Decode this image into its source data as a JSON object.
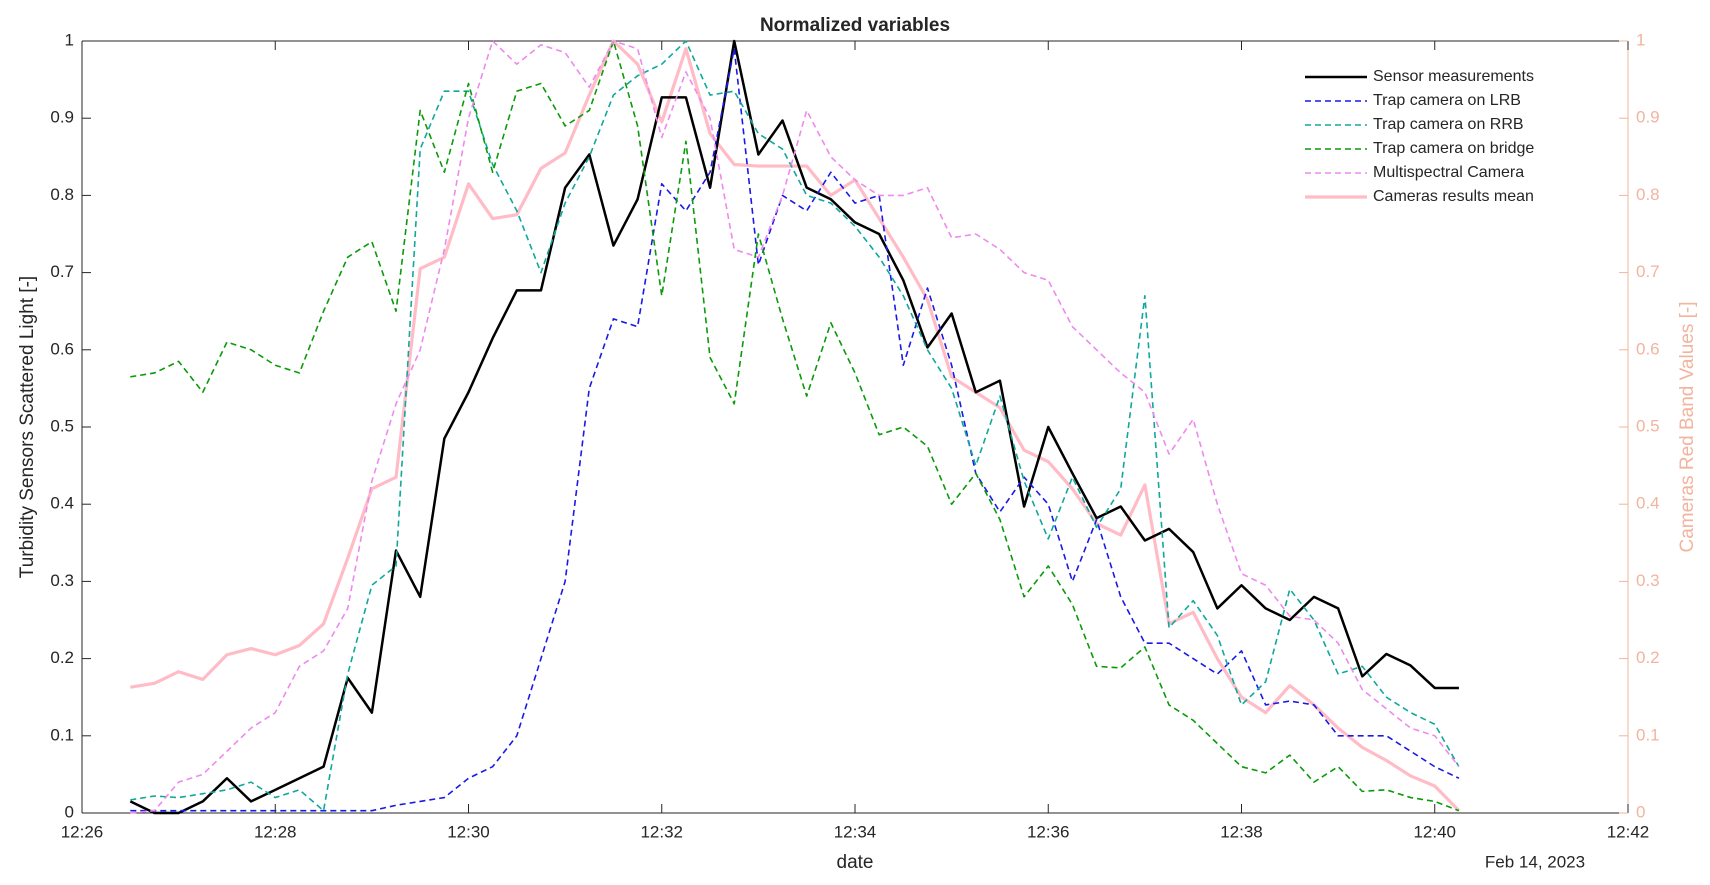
{
  "chart_data": {
    "type": "line",
    "title": "Normalized variables",
    "xlabel": "date",
    "ylabel": "Turbidity Sensors Scattered Light [-]",
    "y2label": "Cameras Red Band Values [-]",
    "date_label": "Feb 14, 2023",
    "axis_color": "#262626",
    "y2_color": "#f2b49e",
    "legend": "upper right",
    "grid": false,
    "xlim": [
      746,
      762
    ],
    "xticks": [
      {
        "value": 746,
        "label": "12:26"
      },
      {
        "value": 748,
        "label": "12:28"
      },
      {
        "value": 750,
        "label": "12:30"
      },
      {
        "value": 752,
        "label": "12:32"
      },
      {
        "value": 754,
        "label": "12:34"
      },
      {
        "value": 756,
        "label": "12:36"
      },
      {
        "value": 758,
        "label": "12:38"
      },
      {
        "value": 760,
        "label": "12:40"
      },
      {
        "value": 762,
        "label": "12:42"
      }
    ],
    "ylim": [
      0,
      1
    ],
    "yticks": [
      0,
      0.1,
      0.2,
      0.3,
      0.4,
      0.5,
      0.6,
      0.7,
      0.8,
      0.9,
      1
    ],
    "y2lim": [
      0,
      1
    ],
    "y2ticks": [
      0,
      0.1,
      0.2,
      0.3,
      0.4,
      0.5,
      0.6,
      0.7,
      0.8,
      0.9,
      1
    ],
    "x": [
      746.5,
      746.75,
      747,
      747.25,
      747.5,
      747.75,
      748,
      748.25,
      748.5,
      748.75,
      749,
      749.25,
      749.5,
      749.75,
      750,
      750.25,
      750.5,
      750.75,
      751,
      751.25,
      751.5,
      751.75,
      752,
      752.25,
      752.5,
      752.75,
      753,
      753.25,
      753.5,
      753.75,
      754,
      754.25,
      754.5,
      754.75,
      755,
      755.25,
      755.5,
      755.75,
      756,
      756.25,
      756.5,
      756.75,
      757,
      757.25,
      757.5,
      757.75,
      758,
      758.25,
      758.5,
      758.75,
      759,
      759.25,
      759.5,
      759.75,
      760,
      760.25
    ],
    "series": [
      {
        "name": "Sensor measurements",
        "color": "#000000",
        "line_style": "solid",
        "line_width": 2.5,
        "values": [
          0.015,
          0,
          0,
          0.015,
          0.045,
          0.015,
          0.03,
          0.045,
          0.06,
          0.175,
          0.13,
          0.34,
          0.28,
          0.485,
          0.545,
          0.615,
          0.677,
          0.677,
          0.81,
          0.853,
          0.735,
          0.795,
          0.927,
          0.927,
          0.81,
          1.0,
          0.853,
          0.897,
          0.81,
          0.795,
          0.765,
          0.75,
          0.69,
          0.603,
          0.647,
          0.545,
          0.56,
          0.397,
          0.5,
          0.44,
          0.382,
          0.397,
          0.353,
          0.368,
          0.338,
          0.265,
          0.295,
          0.265,
          0.25,
          0.28,
          0.265,
          0.177,
          0.206,
          0.191,
          0.162,
          0.162
        ]
      },
      {
        "name": "Trap camera on LRB",
        "color": "#1a1ae6",
        "line_style": "dashed",
        "line_width": 1.6,
        "values": [
          0.003,
          0.003,
          0.003,
          0.003,
          0.003,
          0.003,
          0.003,
          0.003,
          0.003,
          0.003,
          0.003,
          0.01,
          0.015,
          0.02,
          0.045,
          0.06,
          0.1,
          0.2,
          0.3,
          0.55,
          0.64,
          0.63,
          0.815,
          0.78,
          0.83,
          0.99,
          0.71,
          0.8,
          0.78,
          0.83,
          0.79,
          0.8,
          0.58,
          0.68,
          0.58,
          0.44,
          0.39,
          0.435,
          0.4,
          0.3,
          0.38,
          0.28,
          0.22,
          0.22,
          0.2,
          0.18,
          0.21,
          0.14,
          0.145,
          0.14,
          0.1,
          0.1,
          0.1,
          0.08,
          0.06,
          0.045
        ]
      },
      {
        "name": "Trap camera on RRB",
        "color": "#10a89c",
        "line_style": "dashed",
        "line_width": 1.6,
        "values": [
          0.017,
          0.022,
          0.02,
          0.025,
          0.03,
          0.04,
          0.02,
          0.03,
          0.003,
          0.18,
          0.295,
          0.32,
          0.86,
          0.935,
          0.935,
          0.84,
          0.78,
          0.7,
          0.79,
          0.85,
          0.93,
          0.955,
          0.97,
          1.0,
          0.93,
          0.935,
          0.88,
          0.86,
          0.8,
          0.79,
          0.76,
          0.72,
          0.67,
          0.6,
          0.55,
          0.45,
          0.54,
          0.43,
          0.355,
          0.435,
          0.37,
          0.42,
          0.67,
          0.24,
          0.275,
          0.23,
          0.14,
          0.17,
          0.29,
          0.25,
          0.18,
          0.19,
          0.15,
          0.13,
          0.115,
          0.06
        ]
      },
      {
        "name": "Trap camera on bridge",
        "color": "#0a9a0a",
        "line_style": "dashed",
        "line_width": 1.6,
        "values": [
          0.565,
          0.57,
          0.585,
          0.545,
          0.61,
          0.6,
          0.58,
          0.57,
          0.65,
          0.72,
          0.74,
          0.65,
          0.91,
          0.83,
          0.945,
          0.83,
          0.935,
          0.945,
          0.89,
          0.91,
          1.0,
          0.89,
          0.67,
          0.87,
          0.59,
          0.53,
          0.75,
          0.64,
          0.54,
          0.635,
          0.57,
          0.49,
          0.5,
          0.475,
          0.4,
          0.44,
          0.38,
          0.28,
          0.32,
          0.27,
          0.19,
          0.188,
          0.215,
          0.14,
          0.12,
          0.09,
          0.06,
          0.052,
          0.075,
          0.04,
          0.06,
          0.028,
          0.03,
          0.02,
          0.015,
          0.003
        ]
      },
      {
        "name": "Multispectral Camera",
        "color": "#ee8aee",
        "line_style": "dashed",
        "line_width": 1.6,
        "values": [
          0,
          0.003,
          0.04,
          0.05,
          0.08,
          0.11,
          0.13,
          0.19,
          0.21,
          0.265,
          0.43,
          0.53,
          0.6,
          0.73,
          0.9,
          1.0,
          0.97,
          0.995,
          0.985,
          0.94,
          1.0,
          0.99,
          0.875,
          0.96,
          0.9,
          0.73,
          0.72,
          0.8,
          0.91,
          0.85,
          0.82,
          0.8,
          0.8,
          0.81,
          0.745,
          0.75,
          0.73,
          0.7,
          0.69,
          0.63,
          0.6,
          0.57,
          0.545,
          0.465,
          0.51,
          0.4,
          0.31,
          0.295,
          0.255,
          0.25,
          0.22,
          0.16,
          0.135,
          0.11,
          0.1,
          0.06
        ]
      },
      {
        "name": "Cameras results mean",
        "color": "#ffbcc6",
        "line_style": "solid",
        "line_width": 3.2,
        "axis": "y2",
        "values": [
          0.163,
          0.168,
          0.183,
          0.173,
          0.205,
          0.213,
          0.205,
          0.217,
          0.245,
          0.33,
          0.42,
          0.435,
          0.705,
          0.72,
          0.815,
          0.77,
          0.775,
          0.835,
          0.855,
          0.93,
          1.0,
          0.97,
          0.895,
          0.99,
          0.88,
          0.84,
          0.838,
          0.838,
          0.838,
          0.8,
          0.82,
          0.77,
          0.72,
          0.665,
          0.565,
          0.545,
          0.525,
          0.47,
          0.455,
          0.42,
          0.375,
          0.36,
          0.425,
          0.245,
          0.26,
          0.2,
          0.15,
          0.13,
          0.165,
          0.14,
          0.11,
          0.085,
          0.068,
          0.048,
          0.035,
          0.003
        ]
      }
    ]
  }
}
